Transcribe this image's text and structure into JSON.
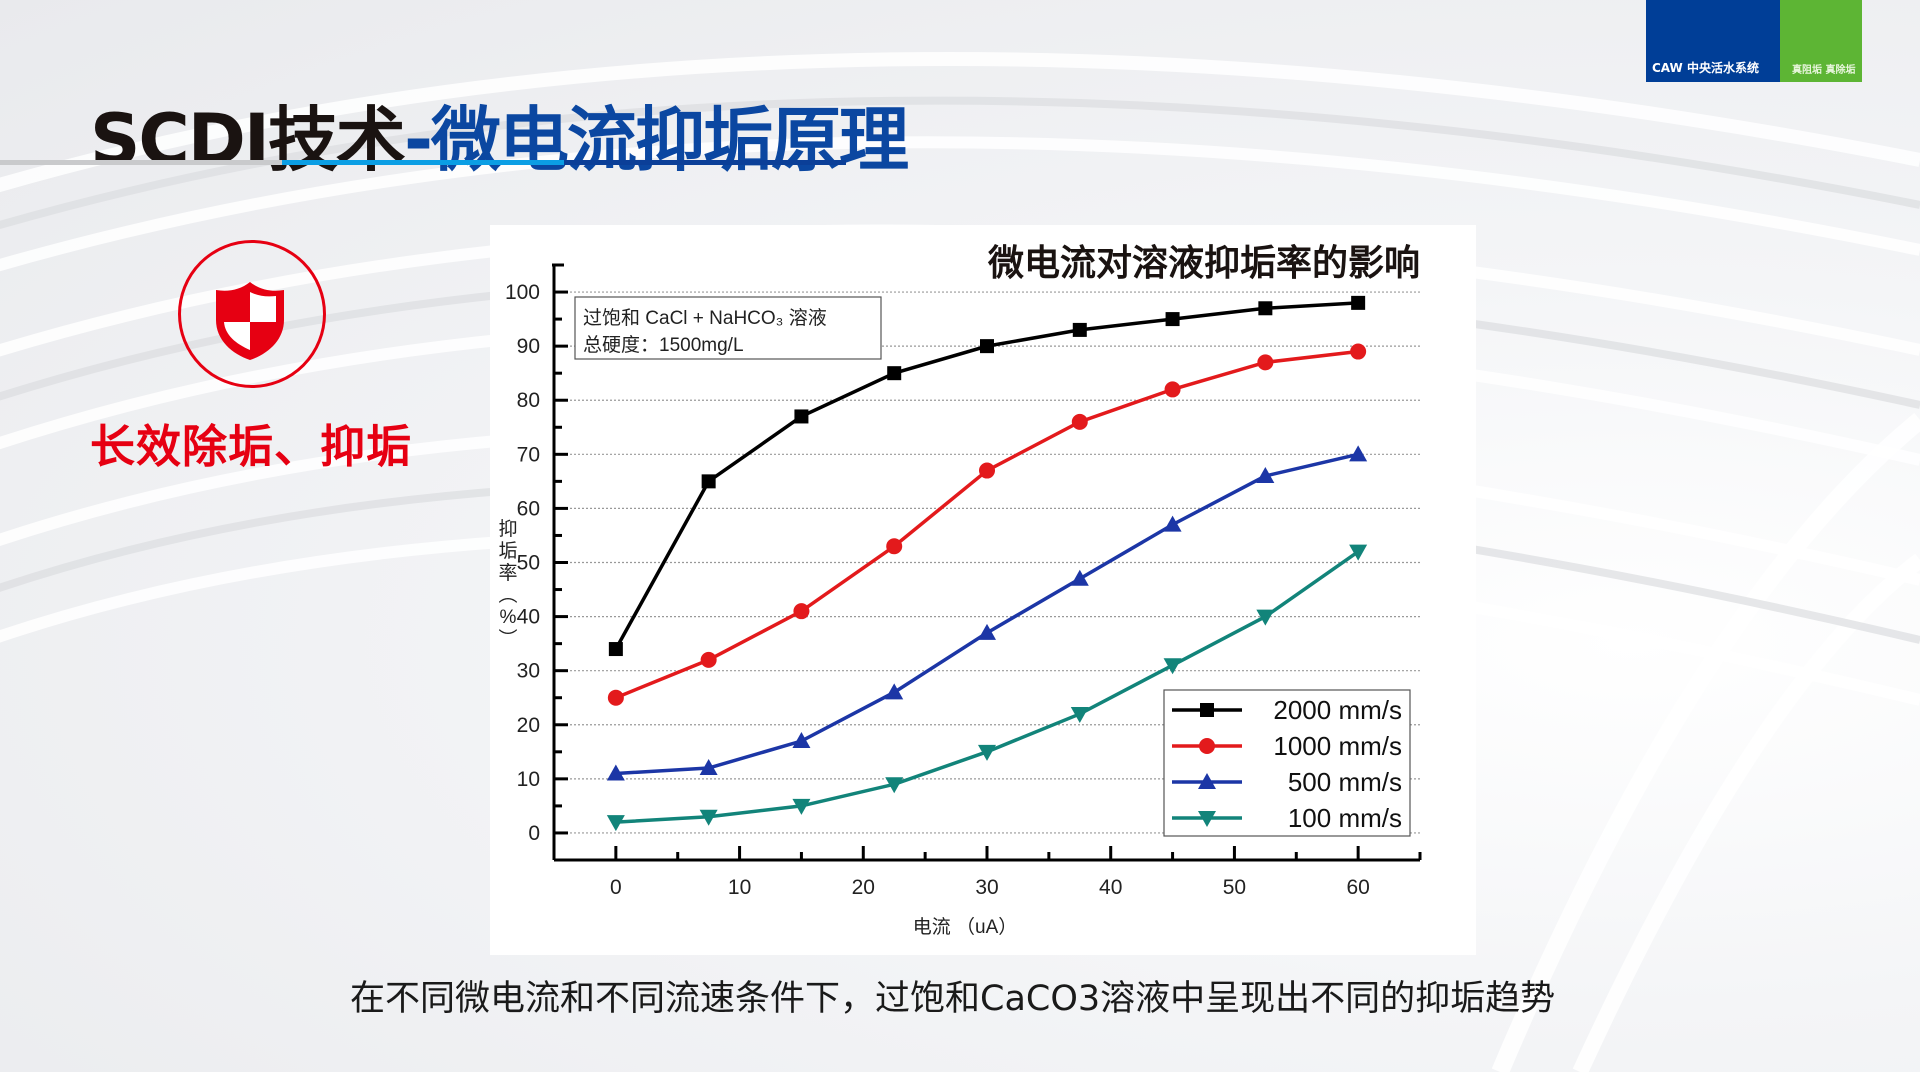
{
  "logo": {
    "brand": "CAW 中央活水系统",
    "slogan": "真阻垢 真除垢",
    "colors": {
      "blue": "#003e97",
      "green": "#5db534"
    }
  },
  "header": {
    "title_part1": "SCDI技术",
    "title_part2": "-微电流抑垢原理"
  },
  "feature": {
    "icon": "shield-icon",
    "label": "长效除垢、抑垢",
    "color": "#e60012"
  },
  "chart_data": {
    "type": "line",
    "title": "微电流对溶液抑垢率的影响",
    "xlabel": "电流 （uA）",
    "ylabel": "抑垢率（%）",
    "xlim": [
      -5,
      65
    ],
    "ylim": [
      -5,
      105
    ],
    "x_ticks": [
      0,
      10,
      20,
      30,
      40,
      50,
      60
    ],
    "y_ticks": [
      0,
      10,
      20,
      30,
      40,
      50,
      60,
      70,
      80,
      90,
      100
    ],
    "grid": "horizontal-dotted",
    "annotation": {
      "line1": "过饱和 CaCl + NaHCO₃ 溶液",
      "line2": "总硬度：1500mg/L",
      "placement": "top-left"
    },
    "legend_placement": "bottom-right",
    "x": [
      0,
      7.5,
      15,
      22.5,
      30,
      37.5,
      45,
      52.5,
      60
    ],
    "series": [
      {
        "name": "2000 mm/s",
        "color": "#000000",
        "marker": "square",
        "values": [
          34,
          65,
          77,
          85,
          90,
          93,
          95,
          97,
          98
        ]
      },
      {
        "name": "1000 mm/s",
        "color": "#e31a1c",
        "marker": "circle",
        "values": [
          25,
          32,
          41,
          53,
          67,
          76,
          82,
          87,
          89
        ]
      },
      {
        "name": "500 mm/s",
        "color": "#1c36a6",
        "marker": "triangle-up",
        "values": [
          11,
          12,
          17,
          26,
          37,
          47,
          57,
          66,
          70
        ]
      },
      {
        "name": "100 mm/s",
        "color": "#12847a",
        "marker": "triangle-down",
        "values": [
          2,
          3,
          5,
          9,
          15,
          22,
          31,
          40,
          52
        ]
      }
    ]
  },
  "caption": "在不同微电流和不同流速条件下，过饱和CaCO3溶液中呈现出不同的抑垢趋势"
}
